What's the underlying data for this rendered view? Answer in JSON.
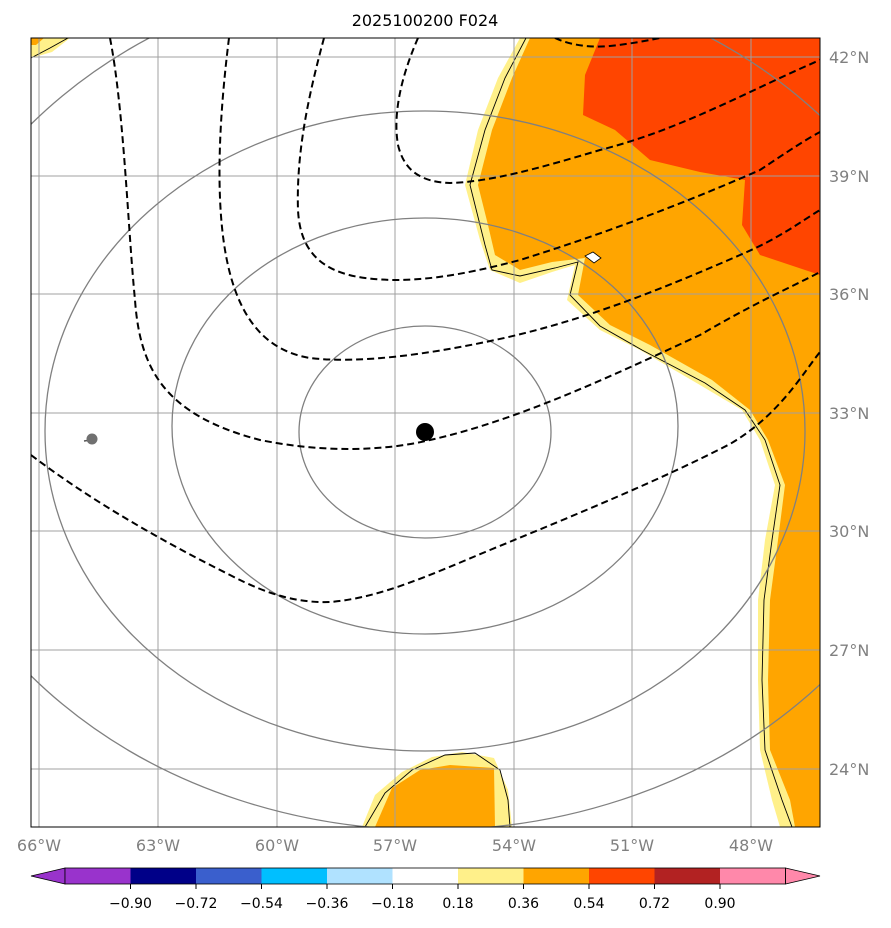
{
  "title": "2025100200 F024",
  "map": {
    "lon_ticks": [
      "66°W",
      "63°W",
      "60°W",
      "57°W",
      "54°W",
      "51°W",
      "48°W"
    ],
    "lat_ticks": [
      "42°N",
      "39°N",
      "36°N",
      "33°N",
      "30°N",
      "27°N",
      "24°N"
    ]
  },
  "colorbar": {
    "tick_labels": [
      "−0.90",
      "−0.72",
      "−0.54",
      "−0.36",
      "−0.18",
      "0.18",
      "0.36",
      "0.54",
      "0.72",
      "0.90"
    ],
    "colors": [
      "#9933cc",
      "#000088",
      "#3a5fcd",
      "#00bfff",
      "#b0e2ff",
      "#ffffff",
      "#fff08a",
      "#ffa500",
      "#ff4500",
      "#b22222",
      "#ff88aa"
    ]
  },
  "colors": {
    "grid": "#a0a0a0",
    "solid_contour": "#808080",
    "dashed_contour": "#000000",
    "tick_label": "#808080"
  }
}
